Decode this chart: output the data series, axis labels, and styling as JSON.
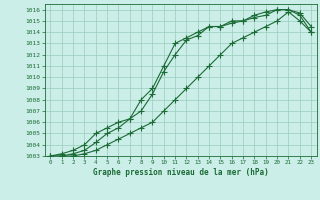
{
  "title": "Graphe pression niveau de la mer (hPa)",
  "bg_color": "#cceee8",
  "grid_color": "#99ccbb",
  "line_color": "#1a6b35",
  "xlim": [
    -0.5,
    23.5
  ],
  "ylim": [
    1003,
    1016.5
  ],
  "xticks": [
    0,
    1,
    2,
    3,
    4,
    5,
    6,
    7,
    8,
    9,
    10,
    11,
    12,
    13,
    14,
    15,
    16,
    17,
    18,
    19,
    20,
    21,
    22,
    23
  ],
  "yticks": [
    1003,
    1004,
    1005,
    1006,
    1007,
    1008,
    1009,
    1010,
    1011,
    1012,
    1013,
    1014,
    1015,
    1016
  ],
  "line1_x": [
    0,
    1,
    2,
    3,
    4,
    5,
    6,
    7,
    8,
    9,
    10,
    11,
    12,
    13,
    14,
    15,
    16,
    17,
    18,
    19,
    20,
    21,
    22,
    23
  ],
  "line1_y": [
    1003,
    1003.2,
    1003.5,
    1004,
    1005,
    1005.5,
    1006,
    1006.3,
    1007,
    1008.5,
    1010.5,
    1012,
    1013.3,
    1013.7,
    1014.5,
    1014.5,
    1014.8,
    1015,
    1015.3,
    1015.5,
    1016,
    1016,
    1015.5,
    1014
  ],
  "line2_x": [
    0,
    1,
    2,
    3,
    4,
    5,
    6,
    7,
    8,
    9,
    10,
    11,
    12,
    13,
    14,
    15,
    16,
    17,
    18,
    19,
    20,
    21,
    22,
    23
  ],
  "line2_y": [
    1003,
    1003,
    1003.2,
    1003.5,
    1004.2,
    1005,
    1005.5,
    1006.3,
    1008,
    1009,
    1011,
    1013,
    1013.5,
    1014,
    1014.5,
    1014.5,
    1015,
    1015,
    1015.5,
    1015.8,
    1016,
    1016,
    1015.7,
    1014.5
  ],
  "line3_x": [
    0,
    1,
    2,
    3,
    4,
    5,
    6,
    7,
    8,
    9,
    10,
    11,
    12,
    13,
    14,
    15,
    16,
    17,
    18,
    19,
    20,
    21,
    22,
    23
  ],
  "line3_y": [
    1003,
    1003,
    1003,
    1003.2,
    1003.5,
    1004,
    1004.5,
    1005,
    1005.5,
    1006,
    1007,
    1008,
    1009,
    1010,
    1011,
    1012,
    1013,
    1013.5,
    1014,
    1014.5,
    1015,
    1015.8,
    1015,
    1014
  ]
}
